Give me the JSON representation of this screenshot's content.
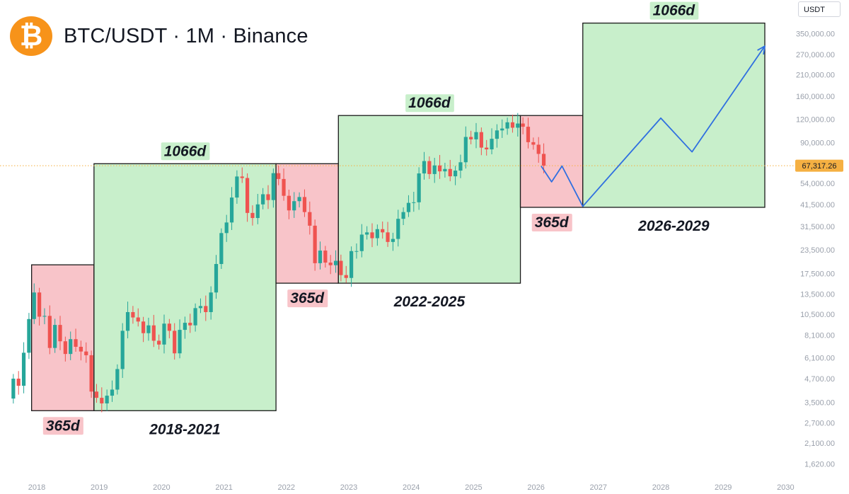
{
  "header": {
    "title": "BTC/USDT · 1M · Binance",
    "logo_symbol": "₿",
    "logo_color": "#f7931a"
  },
  "axis": {
    "unit_label": "USDT",
    "current_price_label": "67,317.26",
    "current_price": 67317.26
  },
  "colors": {
    "up": "#26a69a",
    "down": "#ef5350",
    "bull_fill": "#c8efcb",
    "bear_fill": "#f8c4c9",
    "projection": "#2f6fe0",
    "price_line": "#f5b042"
  },
  "chart_data": {
    "type": "candlestick",
    "title": "BTC/USDT · 1M · Binance",
    "xlabel": "",
    "ylabel": "USDT",
    "y_scale": "log",
    "ylim": [
      1450,
      480000
    ],
    "xlim": [
      "2017-08",
      "2030-01"
    ],
    "grid": false,
    "x_ticks": [
      "2018",
      "2019",
      "2020",
      "2021",
      "2022",
      "2023",
      "2024",
      "2025",
      "2026",
      "2027",
      "2028",
      "2029",
      "2030"
    ],
    "y_ticks": [
      {
        "value": 1620,
        "label": "1,620.00"
      },
      {
        "value": 2100,
        "label": "2,100.00"
      },
      {
        "value": 2700,
        "label": "2,700.00"
      },
      {
        "value": 3500,
        "label": "3,500.00"
      },
      {
        "value": 4700,
        "label": "4,700.00"
      },
      {
        "value": 6100,
        "label": "6,100.00"
      },
      {
        "value": 8100,
        "label": "8,100.00"
      },
      {
        "value": 10500,
        "label": "10,500.00"
      },
      {
        "value": 13500,
        "label": "13,500.00"
      },
      {
        "value": 17500,
        "label": "17,500.00"
      },
      {
        "value": 23500,
        "label": "23,500.00"
      },
      {
        "value": 31500,
        "label": "31,500.00"
      },
      {
        "value": 41500,
        "label": "41,500.00"
      },
      {
        "value": 54000,
        "label": "54,000.00"
      },
      {
        "value": 90000,
        "label": "90,000.00"
      },
      {
        "value": 120000,
        "label": "120,000.00"
      },
      {
        "value": 160000,
        "label": "160,000.00"
      },
      {
        "value": 210000,
        "label": "210,000.00"
      },
      {
        "value": 270000,
        "label": "270,000.00"
      },
      {
        "value": 350000,
        "label": "350,000.00"
      }
    ],
    "monthly_closes": [
      {
        "date": "2017-08",
        "close": 4700
      },
      {
        "date": "2017-09",
        "close": 4300
      },
      {
        "date": "2017-10",
        "close": 6500
      },
      {
        "date": "2017-11",
        "close": 9900
      },
      {
        "date": "2017-12",
        "close": 13800
      },
      {
        "date": "2018-01",
        "close": 10200
      },
      {
        "date": "2018-02",
        "close": 10300
      },
      {
        "date": "2018-03",
        "close": 6900
      },
      {
        "date": "2018-04",
        "close": 9200
      },
      {
        "date": "2018-05",
        "close": 7500
      },
      {
        "date": "2018-06",
        "close": 6400
      },
      {
        "date": "2018-07",
        "close": 7700
      },
      {
        "date": "2018-08",
        "close": 7000
      },
      {
        "date": "2018-09",
        "close": 6600
      },
      {
        "date": "2018-10",
        "close": 6300
      },
      {
        "date": "2018-11",
        "close": 4000
      },
      {
        "date": "2018-12",
        "close": 3700
      },
      {
        "date": "2019-01",
        "close": 3450
      },
      {
        "date": "2019-02",
        "close": 3800
      },
      {
        "date": "2019-03",
        "close": 4100
      },
      {
        "date": "2019-04",
        "close": 5300
      },
      {
        "date": "2019-05",
        "close": 8550
      },
      {
        "date": "2019-06",
        "close": 10800
      },
      {
        "date": "2019-07",
        "close": 10100
      },
      {
        "date": "2019-08",
        "close": 9600
      },
      {
        "date": "2019-09",
        "close": 8300
      },
      {
        "date": "2019-10",
        "close": 9150
      },
      {
        "date": "2019-11",
        "close": 7550
      },
      {
        "date": "2019-12",
        "close": 7200
      },
      {
        "date": "2020-01",
        "close": 9350
      },
      {
        "date": "2020-02",
        "close": 8550
      },
      {
        "date": "2020-03",
        "close": 6450
      },
      {
        "date": "2020-04",
        "close": 8650
      },
      {
        "date": "2020-05",
        "close": 9450
      },
      {
        "date": "2020-06",
        "close": 9150
      },
      {
        "date": "2020-07",
        "close": 11350
      },
      {
        "date": "2020-08",
        "close": 11650
      },
      {
        "date": "2020-09",
        "close": 10800
      },
      {
        "date": "2020-10",
        "close": 13800
      },
      {
        "date": "2020-11",
        "close": 19700
      },
      {
        "date": "2020-12",
        "close": 29000
      },
      {
        "date": "2021-01",
        "close": 33100
      },
      {
        "date": "2021-02",
        "close": 45200
      },
      {
        "date": "2021-03",
        "close": 58800
      },
      {
        "date": "2021-04",
        "close": 57700
      },
      {
        "date": "2021-05",
        "close": 37300
      },
      {
        "date": "2021-06",
        "close": 35000
      },
      {
        "date": "2021-07",
        "close": 41500
      },
      {
        "date": "2021-08",
        "close": 47100
      },
      {
        "date": "2021-09",
        "close": 43800
      },
      {
        "date": "2021-10",
        "close": 61300
      },
      {
        "date": "2021-11",
        "close": 57000
      },
      {
        "date": "2021-12",
        "close": 46200
      },
      {
        "date": "2022-01",
        "close": 38500
      },
      {
        "date": "2022-02",
        "close": 43200
      },
      {
        "date": "2022-03",
        "close": 45500
      },
      {
        "date": "2022-04",
        "close": 37700
      },
      {
        "date": "2022-05",
        "close": 31800
      },
      {
        "date": "2022-06",
        "close": 19900
      },
      {
        "date": "2022-07",
        "close": 23300
      },
      {
        "date": "2022-08",
        "close": 20050
      },
      {
        "date": "2022-09",
        "close": 19400
      },
      {
        "date": "2022-10",
        "close": 20500
      },
      {
        "date": "2022-11",
        "close": 17150
      },
      {
        "date": "2022-12",
        "close": 16550
      },
      {
        "date": "2023-01",
        "close": 23150
      },
      {
        "date": "2023-02",
        "close": 23150
      },
      {
        "date": "2023-03",
        "close": 28450
      },
      {
        "date": "2023-04",
        "close": 29250
      },
      {
        "date": "2023-05",
        "close": 27200
      },
      {
        "date": "2023-06",
        "close": 30450
      },
      {
        "date": "2023-07",
        "close": 29250
      },
      {
        "date": "2023-08",
        "close": 25950
      },
      {
        "date": "2023-09",
        "close": 26950
      },
      {
        "date": "2023-10",
        "close": 34650
      },
      {
        "date": "2023-11",
        "close": 37700
      },
      {
        "date": "2023-12",
        "close": 42300
      },
      {
        "date": "2024-01",
        "close": 42600
      },
      {
        "date": "2024-02",
        "close": 61100
      },
      {
        "date": "2024-03",
        "close": 71300
      },
      {
        "date": "2024-04",
        "close": 60650
      },
      {
        "date": "2024-05",
        "close": 67500
      },
      {
        "date": "2024-06",
        "close": 62700
      },
      {
        "date": "2024-07",
        "close": 64600
      },
      {
        "date": "2024-08",
        "close": 58950
      },
      {
        "date": "2024-09",
        "close": 63300
      },
      {
        "date": "2024-10",
        "close": 70250
      },
      {
        "date": "2024-11",
        "close": 96400
      },
      {
        "date": "2024-12",
        "close": 93550
      },
      {
        "date": "2025-01",
        "close": 102400
      },
      {
        "date": "2025-02",
        "close": 84350
      },
      {
        "date": "2025-03",
        "close": 82550
      },
      {
        "date": "2025-04",
        "close": 94200
      },
      {
        "date": "2025-05",
        "close": 104600
      },
      {
        "date": "2025-06",
        "close": 107100
      },
      {
        "date": "2025-07",
        "close": 115750
      },
      {
        "date": "2025-08",
        "close": 108200
      },
      {
        "date": "2025-09",
        "close": 114000
      },
      {
        "date": "2025-10",
        "close": 109500
      },
      {
        "date": "2025-11",
        "close": 90300
      },
      {
        "date": "2025-12",
        "close": 87500
      },
      {
        "date": "2026-01",
        "close": 78000
      },
      {
        "date": "2026-02",
        "close": 67317
      }
    ],
    "annotations": [
      {
        "phase": "bear",
        "start": "2017-12",
        "end": "2018-12",
        "ymin": 3150,
        "ymax": 19500,
        "duration_label": "365d",
        "period_label": ""
      },
      {
        "phase": "bull",
        "start": "2018-12",
        "end": "2021-11",
        "ymin": 3150,
        "ymax": 69000,
        "duration_label": "1066d",
        "period_label": "2018-2021"
      },
      {
        "phase": "bear",
        "start": "2021-11",
        "end": "2022-11",
        "ymin": 15500,
        "ymax": 69000,
        "duration_label": "365d",
        "period_label": ""
      },
      {
        "phase": "bull",
        "start": "2022-11",
        "end": "2025-10",
        "ymin": 15500,
        "ymax": 126000,
        "duration_label": "1066d",
        "period_label": "2022-2025"
      },
      {
        "phase": "bear",
        "start": "2025-10",
        "end": "2026-10",
        "ymin": 40000,
        "ymax": 126000,
        "duration_label": "365d",
        "period_label": ""
      },
      {
        "phase": "bull",
        "start": "2026-10",
        "end": "2029-09",
        "ymin": 40000,
        "ymax": 400000,
        "duration_label": "1066d",
        "period_label": "2026-2029"
      }
    ],
    "projection": [
      {
        "date": "2026-02",
        "value": 67000
      },
      {
        "date": "2026-04",
        "value": 55000
      },
      {
        "date": "2026-06",
        "value": 67000
      },
      {
        "date": "2026-10",
        "value": 40500
      },
      {
        "date": "2028-01",
        "value": 122000
      },
      {
        "date": "2028-07",
        "value": 80000
      },
      {
        "date": "2029-09",
        "value": 300000
      }
    ]
  }
}
